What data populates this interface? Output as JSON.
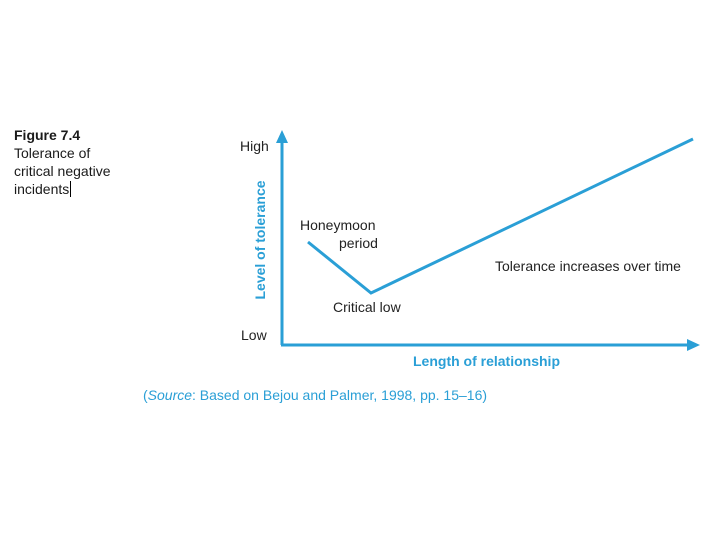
{
  "figure": {
    "number": "Figure 7.4",
    "title_lines": [
      "Tolerance of",
      "critical negative",
      "incidents"
    ]
  },
  "axes": {
    "y_title": "Level of tolerance",
    "x_title": "Length of relationship",
    "y_high": "High",
    "y_low": "Low",
    "color": "#2a9fd6"
  },
  "annotations": {
    "honeymoon_line1": "Honeymoon",
    "honeymoon_line2": "period",
    "critical_low": "Critical low",
    "increase": "Tolerance increases over time"
  },
  "source": {
    "prefix": "(",
    "label": "Source",
    "text": ": Based on Bejou and Palmer, 1998, pp. 15–16)"
  }
}
